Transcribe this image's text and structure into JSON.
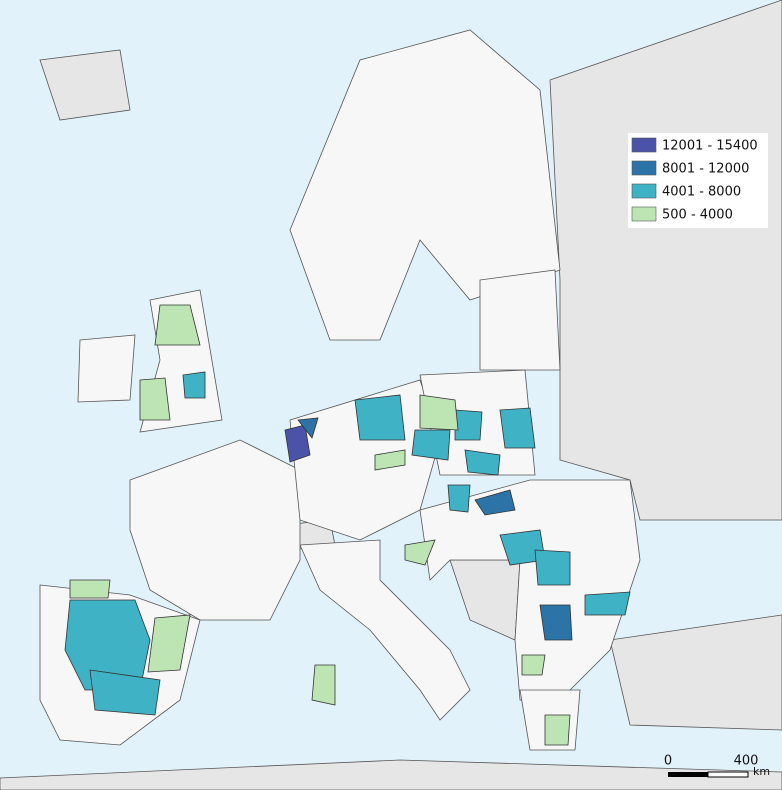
{
  "legend": {
    "items": [
      {
        "label": "12001 - 15400",
        "color": "#4a53a8"
      },
      {
        "label": "8001 - 12000",
        "color": "#2c74a8"
      },
      {
        "label": "4001 - 8000",
        "color": "#40b2c6"
      },
      {
        "label": "500 - 4000",
        "color": "#bde5b4"
      }
    ]
  },
  "scale_bar": {
    "labels": [
      "0",
      "400"
    ],
    "unit": "km"
  }
}
